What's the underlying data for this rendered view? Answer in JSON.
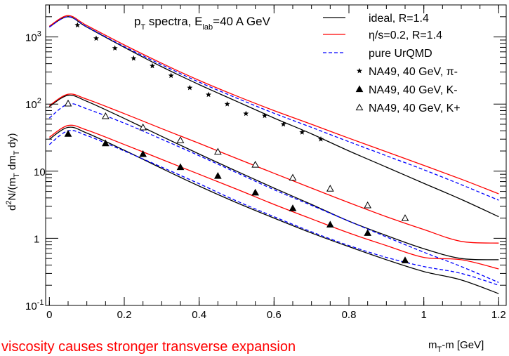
{
  "chart_data": {
    "type": "line",
    "title": {
      "main": "p",
      "sub1": "T",
      "mid": " spectra, E",
      "sub2": "lab",
      "tail": "=40 A GeV"
    },
    "xlabel": {
      "main": "m",
      "sub": "T",
      "tail": "-m [GeV]"
    },
    "ylabel": {
      "part1": "d",
      "sup": "2",
      "part2": "N/(m",
      "sub1": "T",
      "part3": " dm",
      "sub2": "T",
      "part4": " dy)"
    },
    "xlim": [
      -0.01,
      1.22
    ],
    "ylim": [
      0.1,
      3000
    ],
    "yscale": "log",
    "x_ticks": [
      0,
      0.2,
      0.4,
      0.6,
      0.8,
      1,
      1.2
    ],
    "x_tick_labels": [
      "0",
      "0.2",
      "0.4",
      "0.6",
      "0.8",
      "1",
      "1.2"
    ],
    "y_ticks": [
      0.1,
      1,
      10,
      100,
      1000
    ],
    "y_tick_labels": [
      {
        "base": "10",
        "sup": "-1"
      },
      {
        "base": "1",
        "sup": ""
      },
      {
        "base": "10",
        "sup": ""
      },
      {
        "base": "10",
        "sup": "2"
      },
      {
        "base": "10",
        "sup": "3"
      }
    ],
    "legend_position": "top-right",
    "legend": [
      {
        "label": "ideal, R=1.4",
        "kind": "line",
        "color": "#000000",
        "dash": false
      },
      {
        "label": "η/s=0.2, R=1.4",
        "kind": "line",
        "color": "#ff0000",
        "dash": false
      },
      {
        "label": "pure UrQMD",
        "kind": "line",
        "color": "#0000ff",
        "dash": true
      },
      {
        "label": "NA49, 40 GeV, π-",
        "kind": "star"
      },
      {
        "label": "NA49, 40 GeV, K-",
        "kind": "filled-triangle"
      },
      {
        "label": "NA49, 40 GeV, K+",
        "kind": "open-triangle"
      }
    ],
    "curves": [
      {
        "group": "pi-",
        "model": "ideal",
        "color": "#000000",
        "dash": false,
        "x": [
          0,
          0.05,
          0.1,
          0.2,
          0.3,
          0.4,
          0.5,
          0.6,
          0.7,
          0.8,
          0.9,
          1.0,
          1.1,
          1.2
        ],
        "y": [
          1420,
          2000,
          1400,
          700,
          360,
          195,
          110,
          62,
          36,
          20,
          11.5,
          6.6,
          3.8,
          2.1
        ]
      },
      {
        "group": "pi-",
        "model": "viscous",
        "color": "#ff0000",
        "dash": false,
        "x": [
          0,
          0.05,
          0.1,
          0.2,
          0.3,
          0.4,
          0.5,
          0.6,
          0.7,
          0.8,
          0.9,
          1.0,
          1.1,
          1.2
        ],
        "y": [
          1450,
          2080,
          1480,
          760,
          405,
          225,
          132,
          80,
          50,
          31,
          19.5,
          12.2,
          7.6,
          4.6
        ]
      },
      {
        "group": "pi-",
        "model": "urqmd",
        "color": "#0000ff",
        "dash": true,
        "x": [
          0,
          0.05,
          0.1,
          0.2,
          0.3,
          0.4,
          0.5,
          0.6,
          0.7,
          0.8,
          0.9,
          1.0,
          1.1,
          1.2
        ],
        "y": [
          1400,
          2000,
          1420,
          720,
          385,
          212,
          123,
          73,
          45,
          27.5,
          17,
          10.5,
          6.3,
          3.7
        ]
      },
      {
        "group": "K+",
        "model": "ideal",
        "color": "#000000",
        "dash": false,
        "x": [
          0,
          0.05,
          0.1,
          0.2,
          0.3,
          0.4,
          0.5,
          0.6,
          0.7,
          0.8,
          0.9,
          1.0,
          1.1,
          1.2
        ],
        "y": [
          92,
          135,
          110,
          61,
          33,
          18,
          10,
          5.6,
          3.2,
          1.8,
          1.1,
          0.7,
          0.5,
          0.48
        ]
      },
      {
        "group": "K+",
        "model": "viscous",
        "color": "#ff0000",
        "dash": false,
        "x": [
          0,
          0.05,
          0.1,
          0.2,
          0.3,
          0.4,
          0.5,
          0.6,
          0.7,
          0.8,
          0.9,
          1.0,
          1.1,
          1.2
        ],
        "y": [
          95,
          140,
          118,
          72,
          43,
          26,
          15.5,
          9.3,
          5.6,
          3.4,
          2.1,
          1.35,
          0.9,
          0.85
        ]
      },
      {
        "group": "K+",
        "model": "urqmd",
        "color": "#0000ff",
        "dash": true,
        "x": [
          0,
          0.05,
          0.1,
          0.2,
          0.3,
          0.4,
          0.5,
          0.6,
          0.7,
          0.8,
          0.9,
          1.0,
          1.1,
          1.2
        ],
        "y": [
          62,
          100,
          85,
          52,
          30,
          17,
          9.5,
          5.3,
          3.1,
          1.8,
          1.05,
          0.62,
          0.38,
          0.22
        ]
      },
      {
        "group": "K-",
        "model": "ideal",
        "color": "#000000",
        "dash": false,
        "x": [
          0,
          0.05,
          0.1,
          0.2,
          0.3,
          0.4,
          0.5,
          0.6,
          0.7,
          0.8,
          0.9,
          1.0,
          1.1,
          1.2
        ],
        "y": [
          30,
          45,
          37,
          20.5,
          11,
          6,
          3.4,
          2.0,
          1.2,
          0.75,
          0.48,
          0.32,
          0.24,
          0.15
        ]
      },
      {
        "group": "K-",
        "model": "viscous",
        "color": "#ff0000",
        "dash": false,
        "x": [
          0,
          0.05,
          0.1,
          0.2,
          0.3,
          0.4,
          0.5,
          0.6,
          0.7,
          0.8,
          0.9,
          1.0,
          1.1,
          1.2
        ],
        "y": [
          32,
          48,
          41,
          25,
          15,
          9,
          5.4,
          3.2,
          1.95,
          1.2,
          0.78,
          0.52,
          0.48,
          0.35
        ]
      },
      {
        "group": "K-",
        "model": "urqmd",
        "color": "#0000ff",
        "dash": true,
        "x": [
          0,
          0.05,
          0.1,
          0.2,
          0.3,
          0.4,
          0.5,
          0.6,
          0.7,
          0.8,
          0.9,
          1.0,
          1.1,
          1.2
        ],
        "y": [
          25,
          40,
          34,
          20,
          11.5,
          6.5,
          3.6,
          2.1,
          1.25,
          0.78,
          0.52,
          0.38,
          0.3,
          0.2
        ]
      }
    ],
    "points": [
      {
        "group": "pi-",
        "marker": "star",
        "x": [
          0.075,
          0.125,
          0.175,
          0.225,
          0.275,
          0.325,
          0.375,
          0.425,
          0.475,
          0.525,
          0.575,
          0.625,
          0.675,
          0.725
        ],
        "y": [
          1500,
          950,
          680,
          480,
          370,
          265,
          175,
          138,
          100,
          72,
          67,
          50,
          38,
          30
        ]
      },
      {
        "group": "K+",
        "marker": "open-triangle",
        "x": [
          0.05,
          0.15,
          0.25,
          0.35,
          0.45,
          0.55,
          0.65,
          0.75,
          0.85,
          0.95
        ],
        "y": [
          102,
          66,
          45,
          29,
          19.5,
          12.5,
          8,
          5.5,
          3.1,
          2.0
        ]
      },
      {
        "group": "K-",
        "marker": "filled-triangle",
        "x": [
          0.05,
          0.15,
          0.25,
          0.35,
          0.45,
          0.55,
          0.65,
          0.75,
          0.85,
          0.95
        ],
        "y": [
          36,
          26,
          18,
          11.5,
          8.5,
          4.8,
          2.8,
          1.6,
          1.2,
          0.47
        ]
      }
    ]
  },
  "note": {
    "text": "viscosity causes stronger transverse expansion",
    "color": "#ff0000"
  }
}
